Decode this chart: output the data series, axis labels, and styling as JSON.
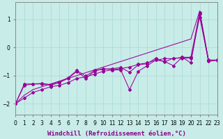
{
  "xlabel": "Windchill (Refroidissement éolien,°C)",
  "bg_color": "#c8ece8",
  "grid_color": "#aad8d0",
  "line_color": "#990099",
  "x": [
    0,
    1,
    2,
    3,
    4,
    5,
    6,
    7,
    8,
    9,
    10,
    11,
    12,
    13,
    14,
    15,
    16,
    17,
    18,
    19,
    20,
    21,
    22,
    23
  ],
  "line_smooth1": [
    -2.0,
    -1.8,
    -1.6,
    -1.5,
    -1.4,
    -1.35,
    -1.25,
    -1.1,
    -1.05,
    -0.95,
    -0.85,
    -0.8,
    -0.75,
    -0.7,
    -0.6,
    -0.55,
    -0.45,
    -0.4,
    -0.4,
    -0.35,
    -0.35,
    1.25,
    -0.45,
    -0.45
  ],
  "line_noisy": [
    -2.0,
    -1.3,
    -1.3,
    -1.3,
    -1.35,
    -1.25,
    -1.1,
    -0.85,
    -1.1,
    -0.85,
    -0.75,
    -0.8,
    -0.8,
    -1.5,
    -0.85,
    -0.65,
    -0.45,
    -0.5,
    -0.65,
    -0.35,
    -0.55,
    1.2,
    -0.5,
    -0.45
  ],
  "line_smooth2": [
    -2.0,
    -1.35,
    -1.3,
    -1.28,
    -1.32,
    -1.22,
    -1.08,
    -0.82,
    -1.02,
    -0.82,
    -0.78,
    -0.75,
    -0.72,
    -0.88,
    -0.62,
    -0.58,
    -0.38,
    -0.52,
    -0.38,
    -0.38,
    -0.38,
    1.08,
    -0.46,
    -0.46
  ],
  "line_envelope": [
    -2.0,
    -1.7,
    -1.5,
    -1.4,
    -1.3,
    -1.2,
    -1.1,
    -1.0,
    -0.9,
    -0.8,
    -0.7,
    -0.6,
    -0.5,
    -0.4,
    -0.3,
    -0.2,
    -0.1,
    0.0,
    0.1,
    0.2,
    0.3,
    1.3,
    -0.45,
    -0.45
  ],
  "ylim": [
    -2.4,
    1.6
  ],
  "xlim": [
    0,
    23
  ],
  "yticks": [
    -2,
    -1,
    0,
    1
  ],
  "xtick_labels": [
    "0",
    "1",
    "2",
    "3",
    "4",
    "5",
    "6",
    "7",
    "8",
    "9",
    "10",
    "11",
    "12",
    "13",
    "14",
    "15",
    "16",
    "17",
    "18",
    "19",
    "20",
    "21",
    "22",
    "23"
  ],
  "xlabel_fontsize": 6.5,
  "tick_fontsize": 5.5,
  "spine_color": "#888888"
}
